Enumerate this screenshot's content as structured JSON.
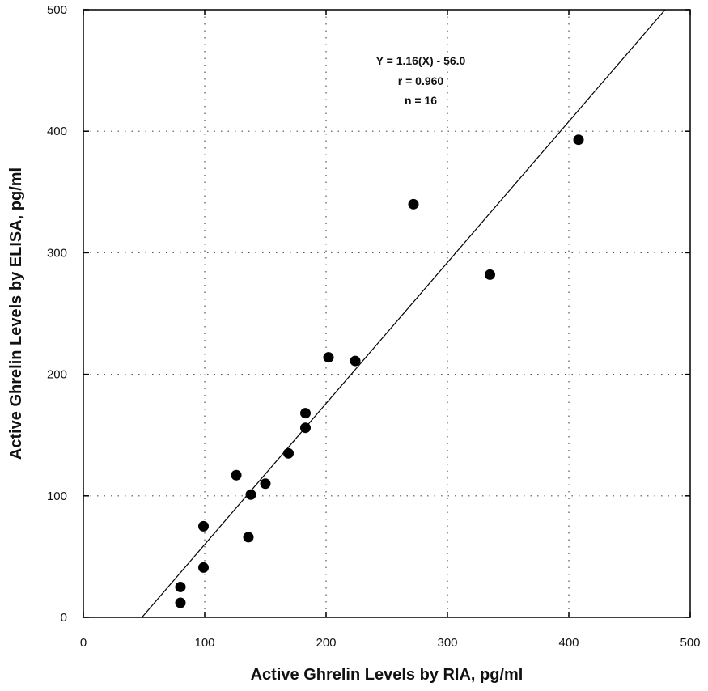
{
  "chart_data": {
    "type": "scatter",
    "xlabel": "Active Ghrelin Levels by RIA, pg/ml",
    "ylabel": "Active Ghrelin Levels by ELISA, pg/ml",
    "xlim": [
      0,
      500
    ],
    "ylim": [
      0,
      500
    ],
    "xticks": [
      0,
      100,
      200,
      300,
      400,
      500
    ],
    "yticks": [
      0,
      100,
      200,
      300,
      400,
      500
    ],
    "grid": "dotted",
    "annotation": [
      "Y = 1.16(X) - 56.0",
      "r = 0.960",
      "n = 16"
    ],
    "fit_line": {
      "slope": 1.16,
      "intercept": -56.0
    },
    "points": [
      {
        "x": 80,
        "y": 12
      },
      {
        "x": 80,
        "y": 25
      },
      {
        "x": 99,
        "y": 41
      },
      {
        "x": 99,
        "y": 75
      },
      {
        "x": 126,
        "y": 117
      },
      {
        "x": 136,
        "y": 66
      },
      {
        "x": 138,
        "y": 101
      },
      {
        "x": 150,
        "y": 110
      },
      {
        "x": 169,
        "y": 135
      },
      {
        "x": 183,
        "y": 156
      },
      {
        "x": 183,
        "y": 168
      },
      {
        "x": 202,
        "y": 214
      },
      {
        "x": 224,
        "y": 211
      },
      {
        "x": 272,
        "y": 340
      },
      {
        "x": 335,
        "y": 282
      },
      {
        "x": 408,
        "y": 393
      }
    ]
  },
  "colors": {
    "marker": "#000000",
    "axis": "#000000",
    "grid": "#555555"
  }
}
